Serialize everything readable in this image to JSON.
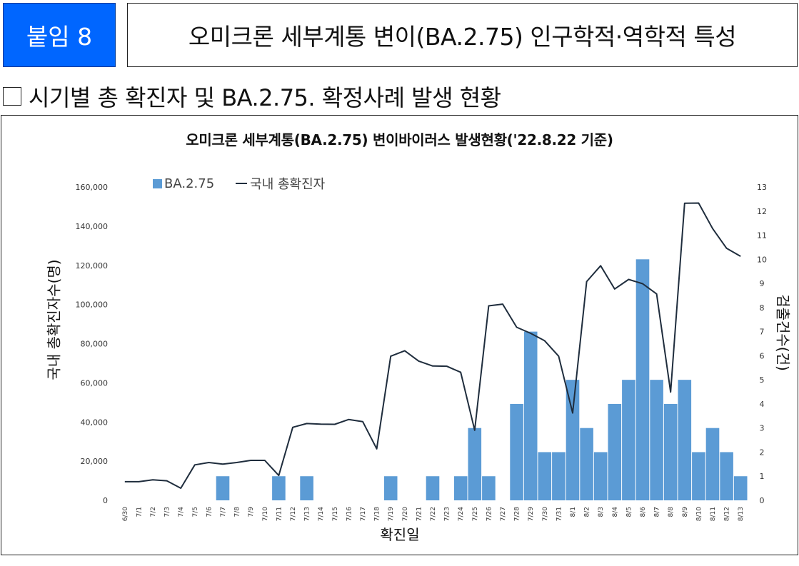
{
  "header": {
    "badge": "붙임 8",
    "title": "오미크론 세부계통 변이(BA.2.75) 인구학적·역학적 특성"
  },
  "section": {
    "heading": "시기별 총 확진자 및 BA.2.75. 확정사례 발생 현황"
  },
  "chart_data": {
    "type": "bar+line",
    "title": "오미크론 세부계통(BA.2.75) 변이바이러스 발생현황('22.8.22 기준)",
    "xlabel": "확진일",
    "ylabel_left": "국내 총확진자수(명)",
    "ylabel_right": "검출건수(건)",
    "legend_position": "top-left",
    "grid": false,
    "categories": [
      "6/30",
      "7/1",
      "7/2",
      "7/3",
      "7/4",
      "7/5",
      "7/6",
      "7/7",
      "7/8",
      "7/9",
      "7/10",
      "7/11",
      "7/12",
      "7/13",
      "7/14",
      "7/15",
      "7/16",
      "7/17",
      "7/18",
      "7/19",
      "7/20",
      "7/21",
      "7/22",
      "7/23",
      "7/24",
      "7/25",
      "7/26",
      "7/27",
      "7/28",
      "7/29",
      "7/30",
      "7/31",
      "8/1",
      "8/2",
      "8/3",
      "8/4",
      "8/5",
      "8/6",
      "8/7",
      "8/8",
      "8/9",
      "8/10",
      "8/11",
      "8/12",
      "8/13"
    ],
    "y_left_ticks": [
      "0",
      "20,000",
      "40,000",
      "60,000",
      "80,000",
      "100,000",
      "120,000",
      "140,000",
      "160,000"
    ],
    "y_left_range": [
      0,
      160000
    ],
    "y_right_ticks": [
      "0",
      "1",
      "2",
      "3",
      "4",
      "5",
      "6",
      "7",
      "8",
      "9",
      "10",
      "11",
      "12",
      "13"
    ],
    "y_right_range": [
      0,
      13
    ],
    "series": [
      {
        "name": "BA.2.75",
        "type": "bar",
        "axis": "right",
        "color": "#5b9bd5",
        "values": [
          0,
          0,
          0,
          0,
          0,
          0,
          0,
          1,
          0,
          0,
          0,
          1,
          0,
          1,
          0,
          0,
          0,
          0,
          0,
          1,
          0,
          0,
          1,
          0,
          1,
          3,
          1,
          0,
          4,
          7,
          2,
          2,
          5,
          3,
          2,
          4,
          5,
          10,
          5,
          4,
          5,
          2,
          3,
          2,
          1
        ]
      },
      {
        "name": "국내 총확진자",
        "type": "line",
        "axis": "left",
        "color": "#1f2d3d",
        "values": [
          9500,
          9500,
          10500,
          10000,
          6200,
          18100,
          19300,
          18500,
          19300,
          20400,
          20400,
          12700,
          37300,
          39200,
          38900,
          38800,
          41300,
          40200,
          26300,
          73600,
          76400,
          71100,
          68600,
          68500,
          65400,
          35800,
          99300,
          100200,
          88400,
          85300,
          81500,
          73600,
          44600,
          111700,
          119800,
          107900,
          112800,
          110600,
          105400,
          55300,
          151700,
          151800,
          138800,
          128700,
          124600
        ]
      }
    ]
  }
}
